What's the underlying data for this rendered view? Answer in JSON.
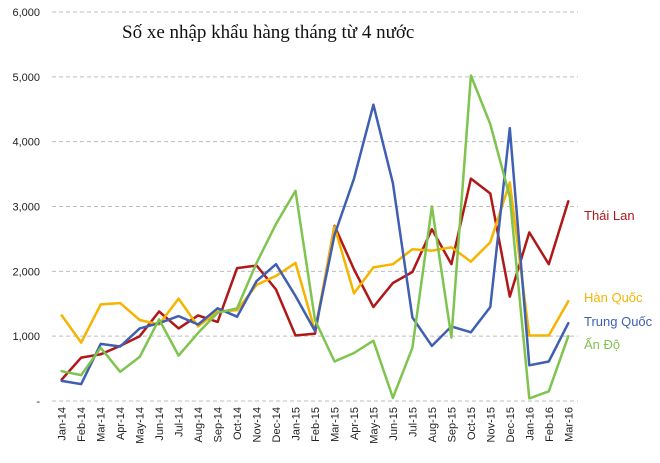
{
  "chart_data": {
    "type": "line",
    "title": "Số xe nhập khẩu hàng tháng từ 4 nước",
    "xlabel": "",
    "ylabel": "",
    "ylim": [
      0,
      6000
    ],
    "y_ticks": [
      "-",
      "1,000",
      "2,000",
      "3,000",
      "4,000",
      "5,000",
      "6,000"
    ],
    "grid": true,
    "categories": [
      "Jan-14",
      "Feb-14",
      "Mar-14",
      "Apr-14",
      "May-14",
      "Jun-14",
      "Jul-14",
      "Aug-14",
      "Sep-14",
      "Oct-14",
      "Nov-14",
      "Dec-14",
      "Jan-15",
      "Feb-15",
      "Mar-15",
      "Apr-15",
      "May-15",
      "Jun-15",
      "Jul-15",
      "Aug-15",
      "Sep-15",
      "Oct-15",
      "Nov-15",
      "Dec-15",
      "Jan-16",
      "Feb-16",
      "Mar-16"
    ],
    "series": [
      {
        "name": "Thái Lan",
        "color": "#b01818",
        "values": [
          330,
          670,
          720,
          850,
          1000,
          1380,
          1120,
          1320,
          1220,
          2050,
          2090,
          1720,
          1010,
          1040,
          2700,
          2030,
          1450,
          1820,
          1990,
          2650,
          2110,
          3430,
          3200,
          1610,
          2600,
          2110,
          3080
        ]
      },
      {
        "name": "Hàn Quốc",
        "color": "#f5b400",
        "values": [
          1320,
          900,
          1490,
          1510,
          1250,
          1180,
          1580,
          1150,
          1380,
          1400,
          1790,
          1930,
          2130,
          1080,
          2690,
          1660,
          2060,
          2110,
          2340,
          2320,
          2370,
          2150,
          2450,
          3370,
          1010,
          1010,
          1540
        ]
      },
      {
        "name": "Trung Quốc",
        "color": "#3f5fb0",
        "values": [
          310,
          260,
          880,
          840,
          1120,
          1200,
          1310,
          1180,
          1430,
          1300,
          1850,
          2110,
          1620,
          1080,
          2560,
          3430,
          4570,
          3360,
          1290,
          850,
          1150,
          1060,
          1450,
          4210,
          550,
          610,
          1200
        ]
      },
      {
        "name": "Ấn Độ",
        "color": "#7ec44f",
        "values": [
          460,
          400,
          820,
          450,
          680,
          1260,
          700,
          1050,
          1360,
          1430,
          2130,
          2730,
          3240,
          1250,
          610,
          740,
          930,
          50,
          820,
          3000,
          980,
          5020,
          4270,
          3150,
          40,
          150,
          1000
        ]
      }
    ]
  }
}
